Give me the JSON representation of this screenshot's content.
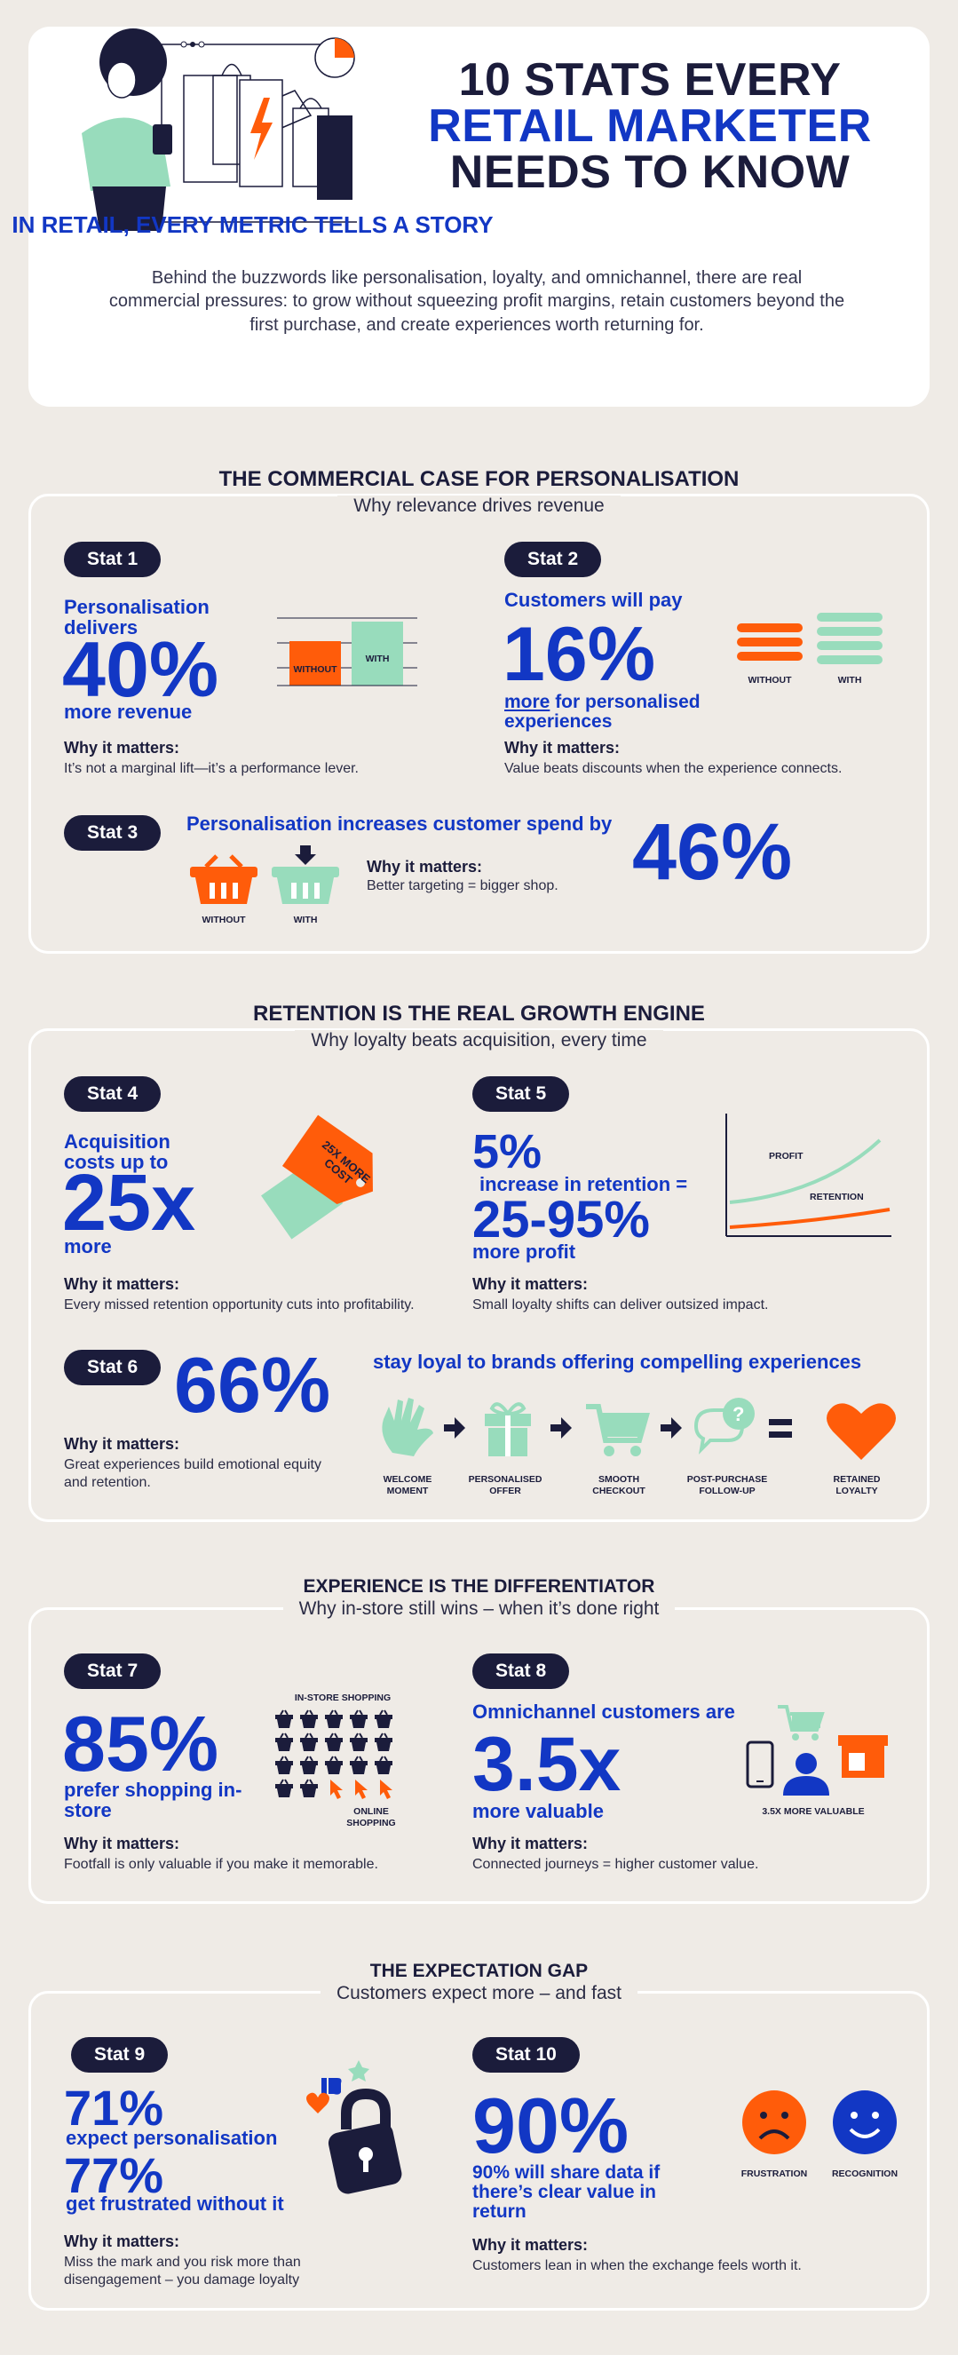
{
  "hero": {
    "title_line1": "10 STATS EVERY",
    "title_line2": "RETAIL MARKETER",
    "title_line3": "NEEDS TO KNOW",
    "subtitle": "IN RETAIL, EVERY METRIC TELLS A STORY",
    "body": "Behind the buzzwords like personalisation, loyalty, and omnichannel, there are real commercial pressures: to grow without squeezing profit margins, retain customers beyond the first purchase, and create experiences worth returning for."
  },
  "why_label": "Why it matters:",
  "sections": [
    {
      "title": "THE COMMERCIAL CASE FOR PERSONALISATION",
      "subtitle": "Why relevance drives revenue"
    },
    {
      "title": "RETENTION IS THE REAL GROWTH ENGINE",
      "subtitle": "Why loyalty beats acquisition, every time"
    },
    {
      "title": "EXPERIENCE IS THE DIFFERENTIATOR",
      "subtitle": "Why in-store still wins – when it’s done right"
    },
    {
      "title": "THE EXPECTATION GAP",
      "subtitle": "Customers expect more – and fast"
    }
  ],
  "stats": {
    "s1": {
      "pill": "Stat 1",
      "lead": "Personalisation delivers",
      "value": "40%",
      "tail": "more revenue",
      "why": "It’s not a marginal lift—it’s a performance lever.",
      "without": "WITHOUT",
      "with": "WITH"
    },
    "s2": {
      "pill": "Stat 2",
      "lead": "Customers will pay",
      "value": "16%",
      "tail_underlined": "more",
      "tail": " for personalised experiences",
      "why": "Value beats discounts when the experience connects.",
      "without": "WITHOUT",
      "with": "WITH"
    },
    "s3": {
      "pill": "Stat 3",
      "lead": "Personalisation increases customer spend by",
      "value": "46%",
      "why": "Better targeting = bigger shop.",
      "without": "WITHOUT",
      "with": "WITH"
    },
    "s4": {
      "pill": "Stat 4",
      "lead": "Acquisition costs up to",
      "value": "25x",
      "tail": "more",
      "why": "Every missed retention opportunity cuts into profitability.",
      "tag": "25X MORE COST"
    },
    "s5": {
      "pill": "Stat 5",
      "value_small": "5%",
      "mid": "increase in retention =",
      "value": "25-95%",
      "tail": "more profit",
      "why": "Small loyalty shifts can deliver outsized impact.",
      "profit": "PROFIT",
      "retention": "RETENTION"
    },
    "s6": {
      "pill": "Stat 6",
      "value": "66%",
      "lead": "stay loyal to brands offering compelling experiences",
      "why": "Great experiences build emotional equity and retention.",
      "steps": [
        "WELCOME MOMENT",
        "PERSONALISED OFFER",
        "SMOOTH CHECKOUT",
        "POST-PURCHASE FOLLOW-UP",
        "RETAINED LOYALTY"
      ]
    },
    "s7": {
      "pill": "Stat 7",
      "value": "85%",
      "tail": "prefer shopping in-store",
      "why": "Footfall is only valuable if you make it memorable.",
      "instore": "IN-STORE SHOPPING",
      "online": "ONLINE SHOPPING"
    },
    "s8": {
      "pill": "Stat 8",
      "lead": "Omnichannel customers are",
      "value": "3.5x",
      "tail": "more valuable",
      "why": "Connected journeys = higher customer value.",
      "caption": "3.5X MORE VALUABLE"
    },
    "s9": {
      "pill": "Stat 9",
      "value1": "71%",
      "tail1": "expect personalisation",
      "value2": "77%",
      "tail2": "get frustrated without it",
      "why": "Miss the mark and you risk more than disengagement – you damage loyalty"
    },
    "s10": {
      "pill": "Stat 10",
      "value": "90%",
      "tail": "90% will share data if there’s clear value in return",
      "why": "Customers lean in when the exchange feels worth it.",
      "frustration": "FRUSTRATION",
      "recognition": "RECOGNITION"
    }
  },
  "colors": {
    "navy": "#1b1c3b",
    "blue": "#1237c4",
    "orange": "#ff5c0a",
    "mint": "#98dcbc",
    "bg": "#efebe6"
  }
}
